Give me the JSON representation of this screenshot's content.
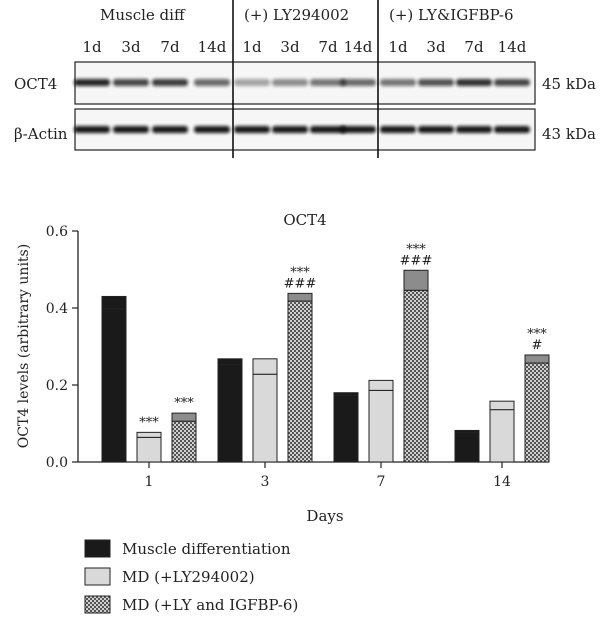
{
  "western_blot": {
    "groups": [
      {
        "name": "Muscle diff",
        "days": [
          "1d",
          "3d",
          "7d",
          "14d"
        ]
      },
      {
        "name": "(+) LY294002",
        "days": [
          "1d",
          "3d",
          "7d",
          "14d"
        ]
      },
      {
        "name": "(+) LY&IGFBP-6",
        "days": [
          "1d",
          "3d",
          "7d",
          "14d"
        ]
      }
    ],
    "rows": [
      {
        "label": "OCT4",
        "size": "45 kDa",
        "intensity": [
          [
            0.9,
            0.75,
            0.8,
            0.6
          ],
          [
            0.35,
            0.45,
            0.55,
            0.6
          ],
          [
            0.55,
            0.7,
            0.85,
            0.75
          ]
        ]
      },
      {
        "label": "β-Actin",
        "size": "43 kDa",
        "intensity": [
          [
            0.95,
            0.95,
            0.95,
            0.95
          ],
          [
            0.95,
            0.95,
            0.95,
            0.95
          ],
          [
            0.95,
            0.95,
            0.95,
            0.95
          ]
        ]
      }
    ]
  },
  "chart_data": {
    "type": "bar",
    "title": "OCT4",
    "xlabel": "Days",
    "ylabel": "OCT4 levels (arbitrary units)",
    "categories": [
      "1",
      "3",
      "7",
      "14"
    ],
    "ylim": [
      0,
      0.6
    ],
    "yticks": [
      "0.0",
      "0.2",
      "0.4",
      "0.6"
    ],
    "grid": false,
    "legend_position": "bottom",
    "series": [
      {
        "name": "Muscle differentiation",
        "color": "#1a1a1a",
        "pattern": "solid-dark",
        "values": [
          0.398,
          0.253,
          0.173,
          0.076
        ],
        "errors": [
          0.032,
          0.015,
          0.007,
          0.006
        ],
        "annotations": [
          [],
          [],
          [],
          []
        ]
      },
      {
        "name": "MD (+LY294002)",
        "color": "#d9d9d9",
        "pattern": "solid-light",
        "values": [
          0.064,
          0.228,
          0.186,
          0.136
        ],
        "errors": [
          0.013,
          0.04,
          0.026,
          0.022
        ],
        "annotations": [
          [
            "***"
          ],
          [],
          [],
          []
        ]
      },
      {
        "name": "MD (+LY and IGFBP-6)",
        "color": "#8c8c8c",
        "pattern": "checker",
        "values": [
          0.106,
          0.418,
          0.446,
          0.257
        ],
        "errors": [
          0.021,
          0.02,
          0.052,
          0.021
        ],
        "annotations": [
          [
            "***"
          ],
          [
            "***",
            "###"
          ],
          [
            "***",
            "###"
          ],
          [
            "***",
            "#"
          ]
        ]
      }
    ]
  }
}
